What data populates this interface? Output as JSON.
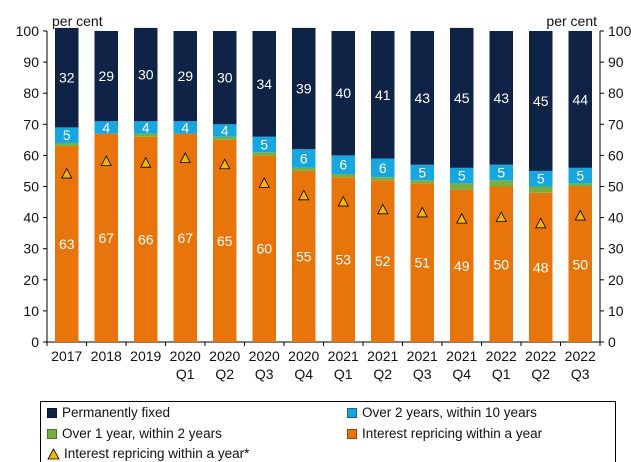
{
  "colors": {
    "permanently_fixed": "#0f2347",
    "over2_within10": "#16a7e0",
    "over1_within2": "#76b041",
    "repricing_within_year": "#e8750b",
    "marker": "#f6b600"
  },
  "chart_data": {
    "type": "bar",
    "stacked": true,
    "y_unit_left": "per cent",
    "y_unit_right": "per cent",
    "ylim": [
      0,
      100
    ],
    "yticks": [
      0,
      10,
      20,
      30,
      40,
      50,
      60,
      70,
      80,
      90,
      100
    ],
    "grid": false,
    "legend_position": "bottom",
    "categories": [
      [
        "2017",
        ""
      ],
      [
        "2018",
        ""
      ],
      [
        "2019",
        ""
      ],
      [
        "2020",
        "Q1"
      ],
      [
        "2020",
        "Q2"
      ],
      [
        "2020",
        "Q3"
      ],
      [
        "2020",
        "Q4"
      ],
      [
        "2021",
        "Q1"
      ],
      [
        "2021",
        "Q2"
      ],
      [
        "2021",
        "Q3"
      ],
      [
        "2021",
        "Q4"
      ],
      [
        "2022",
        "Q1"
      ],
      [
        "2022",
        "Q2"
      ],
      [
        "2022",
        "Q3"
      ]
    ],
    "series": [
      {
        "name": "Interest repricing within a year",
        "color_key": "repricing_within_year",
        "values": [
          63,
          67,
          66,
          67,
          65,
          60,
          55,
          53,
          52,
          51,
          49,
          50,
          48,
          50
        ]
      },
      {
        "name": "Over 1 year, within 2 years",
        "color_key": "over1_within2",
        "values": [
          1,
          0,
          1,
          0,
          1,
          1,
          1,
          1,
          1,
          1,
          2,
          2,
          2,
          1
        ]
      },
      {
        "name": "Over 2 years, within 10 years",
        "color_key": "over2_within10",
        "values": [
          5,
          4,
          4,
          4,
          4,
          5,
          6,
          6,
          6,
          5,
          5,
          5,
          5,
          5
        ]
      },
      {
        "name": "Permanently fixed",
        "color_key": "permanently_fixed",
        "values": [
          32,
          29,
          30,
          29,
          30,
          34,
          39,
          40,
          41,
          43,
          45,
          43,
          45,
          44
        ]
      }
    ],
    "labels_shown": {
      "Interest repricing within a year": [
        63,
        67,
        66,
        67,
        65,
        60,
        55,
        53,
        52,
        51,
        49,
        50,
        48,
        50
      ],
      "Over 2 years, within 10 years": [
        5,
        4,
        4,
        4,
        4,
        5,
        6,
        6,
        6,
        5,
        5,
        5,
        5,
        5
      ],
      "Permanently fixed": [
        32,
        29,
        30,
        29,
        30,
        34,
        39,
        40,
        41,
        43,
        45,
        43,
        45,
        44
      ]
    },
    "marker_series": {
      "name": "Interest repricing within a year*",
      "values": [
        54,
        58,
        57.5,
        59,
        57,
        51,
        47,
        45,
        42.5,
        41.5,
        39.5,
        40,
        38,
        40.5
      ]
    }
  },
  "legend": {
    "items": [
      {
        "label": "Permanently fixed",
        "color_key": "permanently_fixed",
        "kind": "box"
      },
      {
        "label": "Over 2 years, within 10 years",
        "color_key": "over2_within10",
        "kind": "box"
      },
      {
        "label": "Over 1 year, within 2 years",
        "color_key": "over1_within2",
        "kind": "box"
      },
      {
        "label": "Interest repricing within a year",
        "color_key": "repricing_within_year",
        "kind": "box"
      },
      {
        "label": "Interest repricing within a year*",
        "color_key": "marker",
        "kind": "triangle"
      }
    ]
  }
}
